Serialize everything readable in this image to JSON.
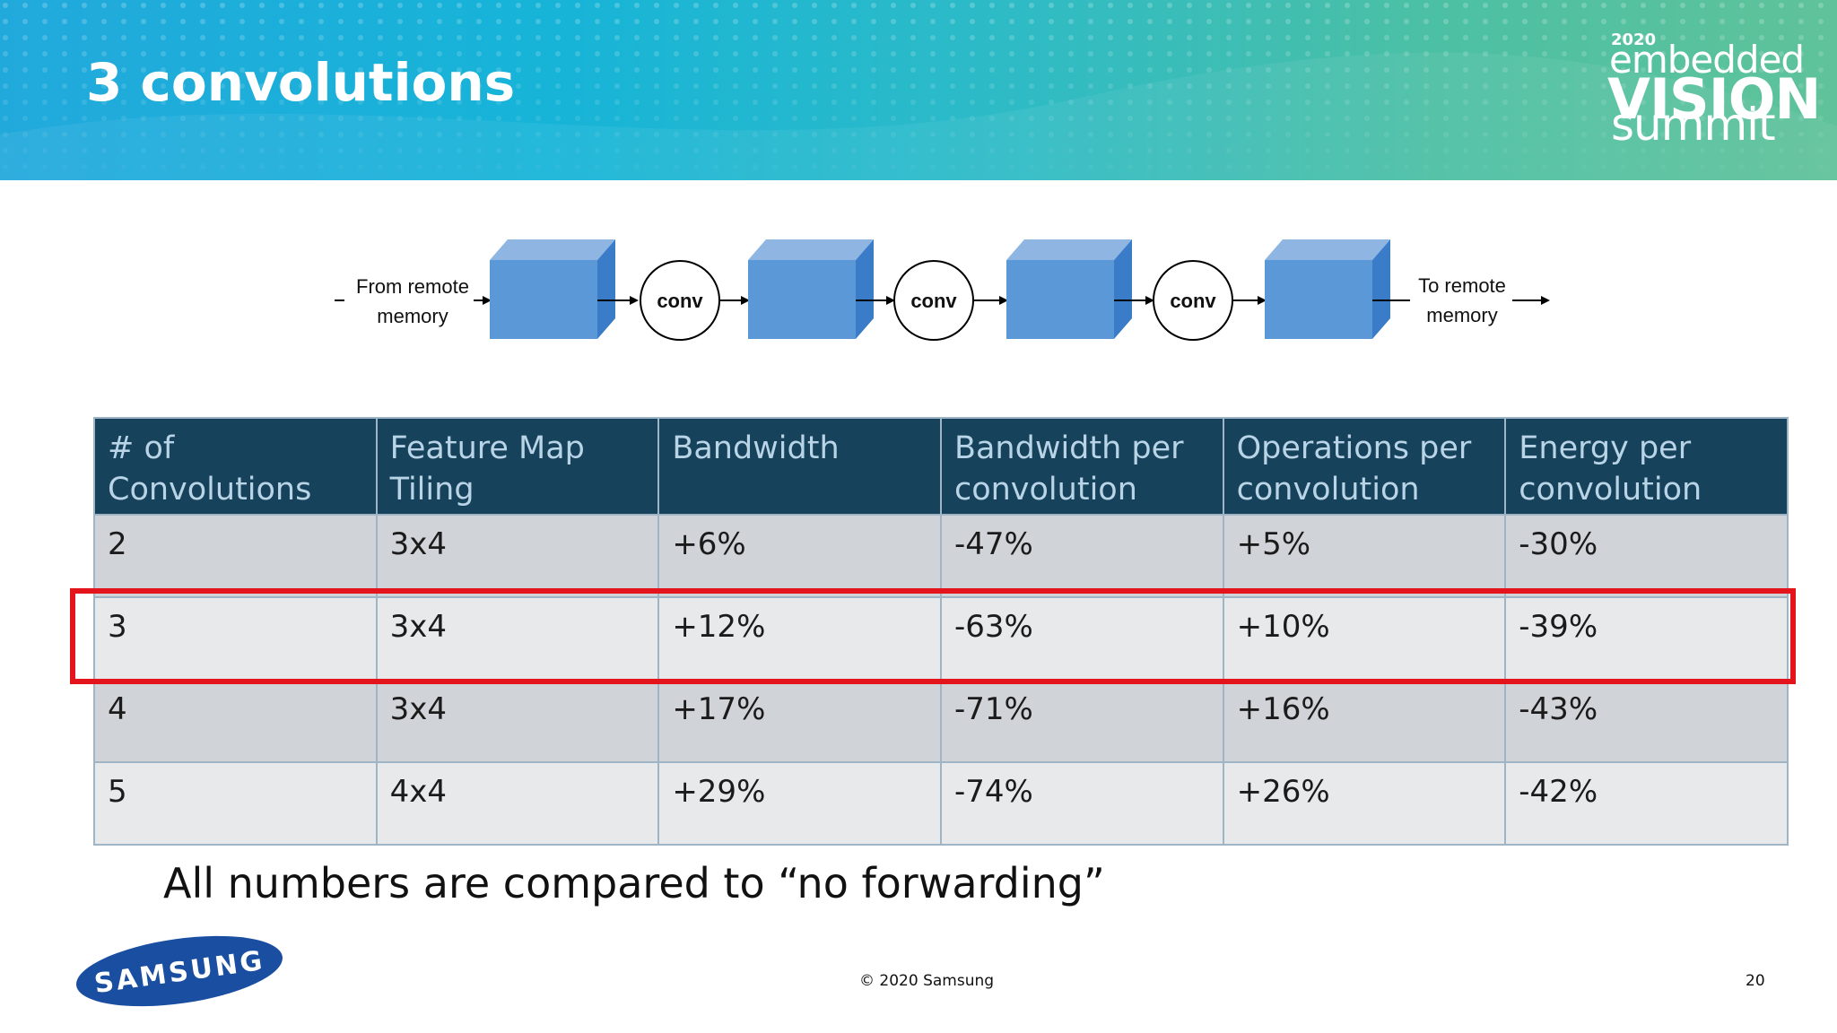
{
  "header": {
    "title": "3 convolutions",
    "logo": {
      "year": "2020",
      "line1": "embedded",
      "line2": "VISION",
      "line3": "summit"
    }
  },
  "diagram": {
    "input_label": [
      "From remote",
      "memory"
    ],
    "output_label": [
      "To remote",
      "memory"
    ],
    "conv_labels": [
      "conv",
      "conv",
      "conv"
    ]
  },
  "table": {
    "headers": [
      [
        "# of Convolutions"
      ],
      [
        "Feature Map",
        "Tiling"
      ],
      [
        "Bandwidth"
      ],
      [
        "Bandwidth per",
        "convolution"
      ],
      [
        "Operations per",
        "convolution"
      ],
      [
        "Energy per",
        "convolution"
      ]
    ],
    "rows": [
      [
        "2",
        "3x4",
        "+6%",
        "-47%",
        "+5%",
        "-30%"
      ],
      [
        "3",
        "3x4",
        "+12%",
        "-63%",
        "+10%",
        "-39%"
      ],
      [
        "4",
        "3x4",
        "+17%",
        "-71%",
        "+16%",
        "-43%"
      ],
      [
        "5",
        "4x4",
        "+29%",
        "-74%",
        "+26%",
        "-42%"
      ]
    ],
    "highlighted_row": "3"
  },
  "note": "All numbers are compared to “no forwarding”",
  "footer": {
    "brand": "SAMSUNG",
    "copyright": "© 2020 Samsung",
    "page_number": "20"
  },
  "colors": {
    "header_bg": "#16425b",
    "header_text": "#b9d4e6",
    "highlight": "#e3141c",
    "row_dark": "#d0d3d7",
    "row_light": "#e8e9eb",
    "samsung_blue": "#1a4ea1"
  }
}
